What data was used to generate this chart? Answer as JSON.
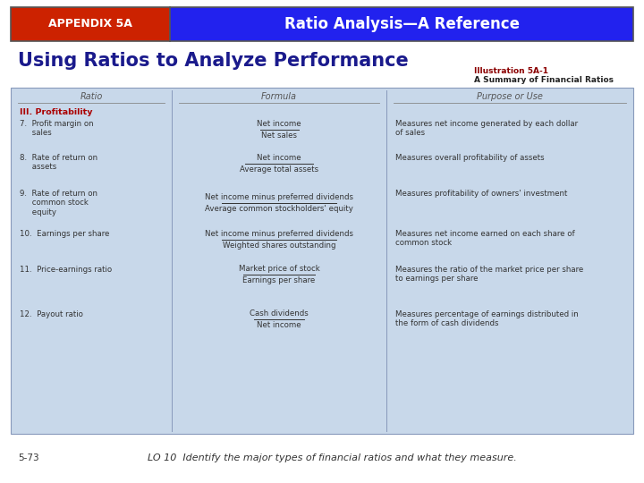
{
  "header_red_text": "APPENDIX 5A",
  "header_blue_text": "Ratio Analysis—A Reference",
  "header_red_bg": "#cc2200",
  "header_blue_bg": "#2222ee",
  "header_text_color": "#ffffff",
  "main_title": "Using Ratios to Analyze Performance",
  "main_title_color": "#1a1a8c",
  "illus_line1": "Illustration 5A-1",
  "illus_line2": "A Summary of Financial Ratios",
  "illus_color": "#8b0000",
  "illus_line2_color": "#222222",
  "table_bg": "#c8d8ea",
  "table_border": "#8899bb",
  "col_headers": [
    "Ratio",
    "Formula",
    "Purpose or Use"
  ],
  "section_header": "III. Profitability",
  "section_color": "#aa0000",
  "rows": [
    {
      "ratio": "7.  Profit margin on\n     sales",
      "formula_num": "Net income",
      "formula_den": "Net sales",
      "purpose": "Measures net income generated by each dollar\nof sales"
    },
    {
      "ratio": "8.  Rate of return on\n     assets",
      "formula_num": "Net income",
      "formula_den": "Average total assets",
      "purpose": "Measures overall profitability of assets"
    },
    {
      "ratio": "9.  Rate of return on\n     common stock\n     equity",
      "formula_num": "Net income minus preferred dividends",
      "formula_den": "Average common stockholders' equity",
      "purpose": "Measures profitability of owners' investment"
    },
    {
      "ratio": "10.  Earnings per share",
      "formula_num": "Net income minus preferred dividends",
      "formula_den": "Weighted shares outstanding",
      "purpose": "Measures net income earned on each share of\ncommon stock"
    },
    {
      "ratio": "11.  Price-earnings ratio",
      "formula_num": "Market price of stock",
      "formula_den": "Earnings per share",
      "purpose": "Measures the ratio of the market price per share\nto earnings per share"
    },
    {
      "ratio": "12.  Payout ratio",
      "formula_num": "Cash dividends",
      "formula_den": "Net income",
      "purpose": "Measures percentage of earnings distributed in\nthe form of cash dividends"
    }
  ],
  "footer_num": "5-73",
  "footer_text": "LO 10  Identify the major types of financial ratios and what they measure.",
  "bg_color": "#ffffff"
}
